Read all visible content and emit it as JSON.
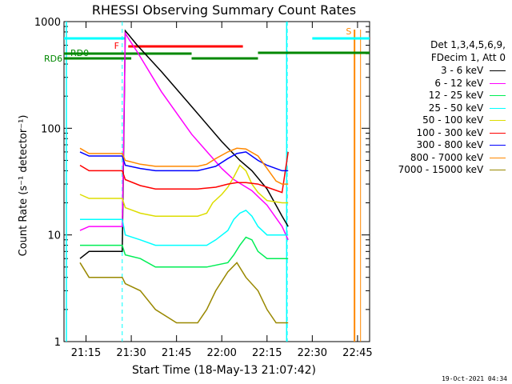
{
  "chart_data": {
    "type": "line",
    "title": "RHESSI Observing Summary Count Rates",
    "xlabel": "Start Time (18-May-13 21:07:42)",
    "ylabel": "Count Rate (s⁻¹ detector⁻¹)",
    "yscale": "log",
    "ylim": [
      1,
      1000
    ],
    "xlim_minutes": [
      7.7,
      109
    ],
    "x_ticks": [
      {
        "label": "21:15",
        "min": 15
      },
      {
        "label": "21:30",
        "min": 30
      },
      {
        "label": "21:45",
        "min": 45
      },
      {
        "label": "22:00",
        "min": 60
      },
      {
        "label": "22:15",
        "min": 75
      },
      {
        "label": "22:30",
        "min": 90
      },
      {
        "label": "22:45",
        "min": 105
      }
    ],
    "y_ticks": [
      {
        "label": "1",
        "v": 1
      },
      {
        "label": "10",
        "v": 10
      },
      {
        "label": "100",
        "v": 100
      },
      {
        "label": "1000",
        "v": 1000
      }
    ],
    "legend_header": [
      "Det 1,3,4,5,6,9,",
      "FDecim 1, Att 0"
    ],
    "footer_date": "19-Oct-2021 04:34",
    "annotations": {
      "flag_f": "F",
      "flag_s": "S",
      "rd0": "RD0",
      "rd6": "RD6"
    },
    "series": [
      {
        "name": "3 - 6 keV",
        "color": "#000000",
        "x": [
          13,
          16,
          27,
          28,
          29,
          32,
          40,
          50,
          60,
          66,
          70,
          75,
          80,
          82
        ],
        "y": [
          6,
          7,
          7,
          820,
          760,
          600,
          340,
          160,
          75,
          50,
          40,
          27,
          15,
          12
        ]
      },
      {
        "name": "6 - 12 keV",
        "color": "#ff00ff",
        "x": [
          13,
          16,
          27,
          28,
          29,
          32,
          40,
          50,
          60,
          64,
          70,
          75,
          80,
          82
        ],
        "y": [
          11,
          12,
          12,
          780,
          700,
          520,
          220,
          88,
          42,
          33,
          26,
          19,
          12,
          9
        ]
      },
      {
        "name": "12 - 25 keV",
        "color": "#00ee55",
        "x": [
          13,
          16,
          27,
          28,
          33,
          38,
          45,
          55,
          62,
          64,
          66,
          68,
          70,
          72,
          75,
          80,
          82
        ],
        "y": [
          8,
          8,
          8,
          6.5,
          6,
          5,
          5,
          5,
          5.5,
          6.5,
          8,
          9.5,
          9,
          7,
          6,
          6,
          6
        ]
      },
      {
        "name": "25 - 50 keV",
        "color": "#00ffff",
        "x": [
          13,
          16,
          27,
          28,
          33,
          38,
          45,
          55,
          58,
          62,
          64,
          66,
          68,
          70,
          72,
          75,
          80,
          82
        ],
        "y": [
          14,
          14,
          14,
          10,
          9,
          8,
          8,
          8,
          9,
          11,
          14,
          16,
          17,
          15,
          12,
          10,
          10,
          10
        ]
      },
      {
        "name": "50 - 100 keV",
        "color": "#dddd00",
        "x": [
          13,
          16,
          27,
          28,
          33,
          38,
          45,
          52,
          55,
          57,
          60,
          62,
          64,
          66,
          68,
          70,
          72,
          75,
          80,
          82
        ],
        "y": [
          24,
          22,
          22,
          18,
          16,
          15,
          15,
          15,
          16,
          20,
          24,
          28,
          35,
          45,
          40,
          30,
          25,
          21,
          20,
          20
        ]
      },
      {
        "name": "100 - 300 keV",
        "color": "#ff0000",
        "x": [
          13,
          16,
          27,
          28,
          33,
          38,
          45,
          52,
          58,
          62,
          65,
          68,
          72,
          75,
          80,
          82
        ],
        "y": [
          45,
          40,
          40,
          33,
          29,
          27,
          27,
          27,
          28,
          30,
          31,
          31,
          30,
          28,
          25,
          60
        ]
      },
      {
        "name": "300 - 800 keV",
        "color": "#0000ff",
        "x": [
          13,
          16,
          27,
          28,
          33,
          38,
          45,
          52,
          58,
          62,
          65,
          68,
          72,
          75,
          80,
          82
        ],
        "y": [
          60,
          55,
          55,
          45,
          42,
          40,
          40,
          40,
          44,
          52,
          58,
          60,
          50,
          45,
          40,
          40
        ]
      },
      {
        "name": "800 - 7000 keV",
        "color": "#ff8800",
        "x": [
          13,
          16,
          27,
          28,
          33,
          38,
          45,
          52,
          55,
          58,
          62,
          65,
          68,
          72,
          75,
          78,
          80,
          82
        ],
        "y": [
          65,
          58,
          58,
          50,
          46,
          44,
          44,
          44,
          46,
          52,
          60,
          65,
          64,
          55,
          42,
          32,
          30,
          30
        ]
      },
      {
        "name": "7000 - 15000 keV",
        "color": "#998800",
        "x": [
          13,
          16,
          27,
          28,
          33,
          38,
          45,
          52,
          55,
          58,
          62,
          65,
          68,
          72,
          75,
          78,
          80,
          82
        ],
        "y": [
          5.5,
          4,
          4,
          3.5,
          3,
          2,
          1.5,
          1.5,
          2,
          3,
          4.5,
          5.5,
          4,
          3,
          2,
          1.5,
          1.5,
          1.5
        ]
      }
    ]
  }
}
